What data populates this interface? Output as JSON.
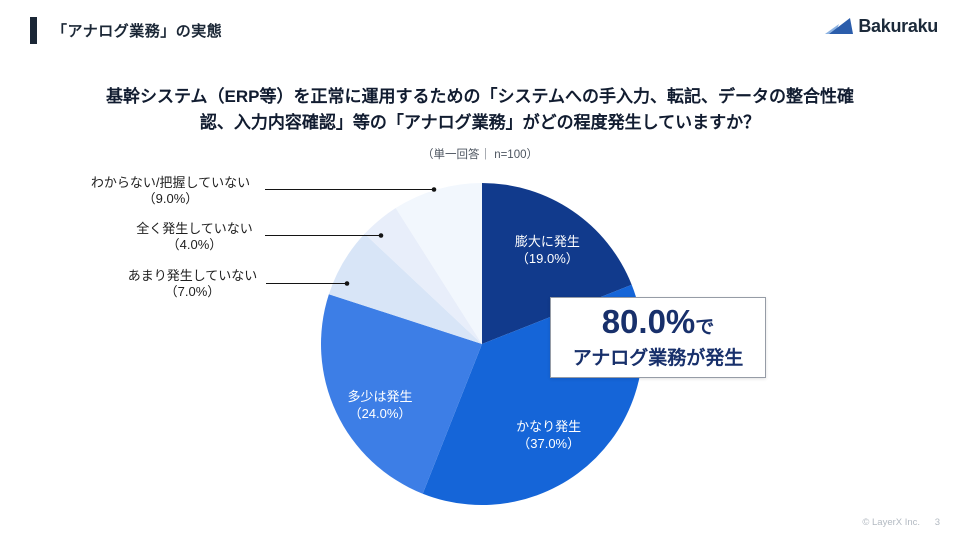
{
  "header": {
    "title": "「アナログ業務」の実態"
  },
  "logo": {
    "text": "Bakuraku"
  },
  "question": {
    "line1": "基幹システム（ERP等）を正常に運用するための「システムへの手入力、転記、データの整合性確",
    "line2": "認、入力内容確認」等の「アナログ業務」がどの程度発生していますか？",
    "note": "（単一回答｜ n=100）"
  },
  "chart_data": {
    "type": "pie",
    "title": "基幹システム（ERP等）を正常に運用するための「システムへの手入力、転記、データの整合性確認、入力内容確認」等の「アナログ業務」がどの程度発生していますか？",
    "note": "（単一回答｜ n=100）",
    "n": 100,
    "start_angle_deg": 0,
    "direction": "clockwise",
    "segments": [
      {
        "label": "膨大に発生",
        "value": 19.0,
        "pct_label": "（19.0%）",
        "color": "#113a8c",
        "label_placement": "inside"
      },
      {
        "label": "かなり発生",
        "value": 37.0,
        "pct_label": "（37.0%）",
        "color": "#1565d8",
        "label_placement": "inside"
      },
      {
        "label": "多少は発生",
        "value": 24.0,
        "pct_label": "（24.0%）",
        "color": "#3d7ee6",
        "label_placement": "inside"
      },
      {
        "label": "あまり発生していない",
        "value": 7.0,
        "pct_label": "（7.0%）",
        "color": "#d8e5f7",
        "label_placement": "outside"
      },
      {
        "label": "全く発生していない",
        "value": 4.0,
        "pct_label": "（4.0%）",
        "color": "#e8eefa",
        "label_placement": "outside"
      },
      {
        "label": "わからない/把握していない",
        "value": 9.0,
        "pct_label": "（9.0%）",
        "color": "#f2f7fd",
        "label_placement": "outside"
      }
    ]
  },
  "callout": {
    "headline_value": "80.0%",
    "headline_suffix": "で",
    "line2": "アナログ業務が発生"
  },
  "footer": {
    "copyright": "© LayerX Inc.",
    "page_number": "3"
  }
}
